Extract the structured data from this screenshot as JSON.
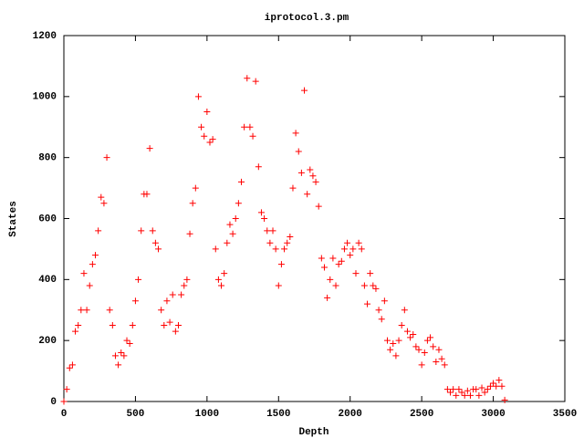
{
  "chart_data": {
    "type": "scatter",
    "title": "iprotocol.3.pm",
    "x_label": "Depth",
    "y_label": "States",
    "xlim": [
      0,
      3500
    ],
    "xticks": [
      0,
      500,
      1000,
      1500,
      2000,
      2500,
      3000,
      3500
    ],
    "ylim": [
      0,
      1200
    ],
    "yticks": [
      0,
      200,
      400,
      600,
      800,
      1000,
      1200
    ],
    "marker": "+",
    "series": [
      {
        "color": "#ff0000",
        "x": [
          0,
          20,
          40,
          60,
          80,
          100,
          120,
          140,
          160,
          180,
          200,
          220,
          240,
          260,
          280,
          300,
          320,
          340,
          360,
          380,
          400,
          420,
          440,
          460,
          480,
          500,
          520,
          540,
          560,
          580,
          600,
          620,
          640,
          660,
          680,
          700,
          720,
          740,
          760,
          780,
          800,
          820,
          840,
          860,
          880,
          900,
          920,
          940,
          960,
          980,
          1000,
          1020,
          1040,
          1060,
          1080,
          1100,
          1120,
          1140,
          1160,
          1180,
          1200,
          1220,
          1240,
          1260,
          1280,
          1300,
          1320,
          1340,
          1360,
          1380,
          1400,
          1420,
          1440,
          1460,
          1480,
          1500,
          1520,
          1540,
          1560,
          1580,
          1600,
          1620,
          1640,
          1660,
          1680,
          1700,
          1720,
          1740,
          1760,
          1780,
          1800,
          1820,
          1840,
          1860,
          1880,
          1900,
          1920,
          1940,
          1960,
          1980,
          2000,
          2020,
          2040,
          2060,
          2080,
          2100,
          2120,
          2140,
          2160,
          2180,
          2200,
          2220,
          2240,
          2260,
          2280,
          2300,
          2320,
          2340,
          2360,
          2380,
          2400,
          2420,
          2440,
          2460,
          2480,
          2500,
          2520,
          2540,
          2560,
          2580,
          2600,
          2620,
          2640,
          2660,
          2680,
          2700,
          2720,
          2740,
          2760,
          2780,
          2800,
          2820,
          2840,
          2860,
          2880,
          2900,
          2920,
          2940,
          2960,
          2980,
          3000,
          3020,
          3040,
          3060,
          3080
        ],
        "values": [
          0,
          40,
          110,
          120,
          230,
          250,
          300,
          420,
          300,
          380,
          450,
          480,
          560,
          670,
          650,
          800,
          300,
          250,
          150,
          120,
          160,
          150,
          200,
          190,
          250,
          330,
          400,
          560,
          680,
          680,
          830,
          560,
          520,
          500,
          300,
          250,
          330,
          260,
          350,
          230,
          250,
          350,
          380,
          400,
          550,
          650,
          700,
          1000,
          900,
          870,
          950,
          850,
          860,
          500,
          400,
          380,
          420,
          520,
          580,
          550,
          600,
          650,
          720,
          900,
          1060,
          900,
          870,
          1050,
          770,
          620,
          600,
          560,
          520,
          560,
          500,
          380,
          450,
          500,
          520,
          540,
          700,
          880,
          820,
          750,
          1020,
          680,
          760,
          740,
          720,
          640,
          470,
          440,
          340,
          400,
          470,
          380,
          450,
          460,
          500,
          520,
          480,
          500,
          420,
          520,
          500,
          380,
          320,
          420,
          380,
          370,
          300,
          270,
          330,
          200,
          170,
          190,
          150,
          200,
          250,
          300,
          230,
          210,
          220,
          180,
          170,
          120,
          160,
          200,
          210,
          180,
          130,
          170,
          140,
          120,
          40,
          30,
          40,
          20,
          40,
          30,
          20,
          35,
          20,
          40,
          40,
          20,
          45,
          30,
          40,
          50,
          60,
          50,
          70,
          50,
          5
        ]
      }
    ]
  }
}
